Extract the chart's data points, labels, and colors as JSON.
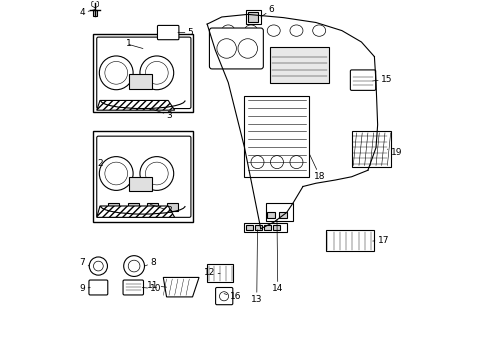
{
  "bg_color": "#ffffff",
  "line_color": "#000000",
  "fs": 6.5,
  "lw": 0.8
}
